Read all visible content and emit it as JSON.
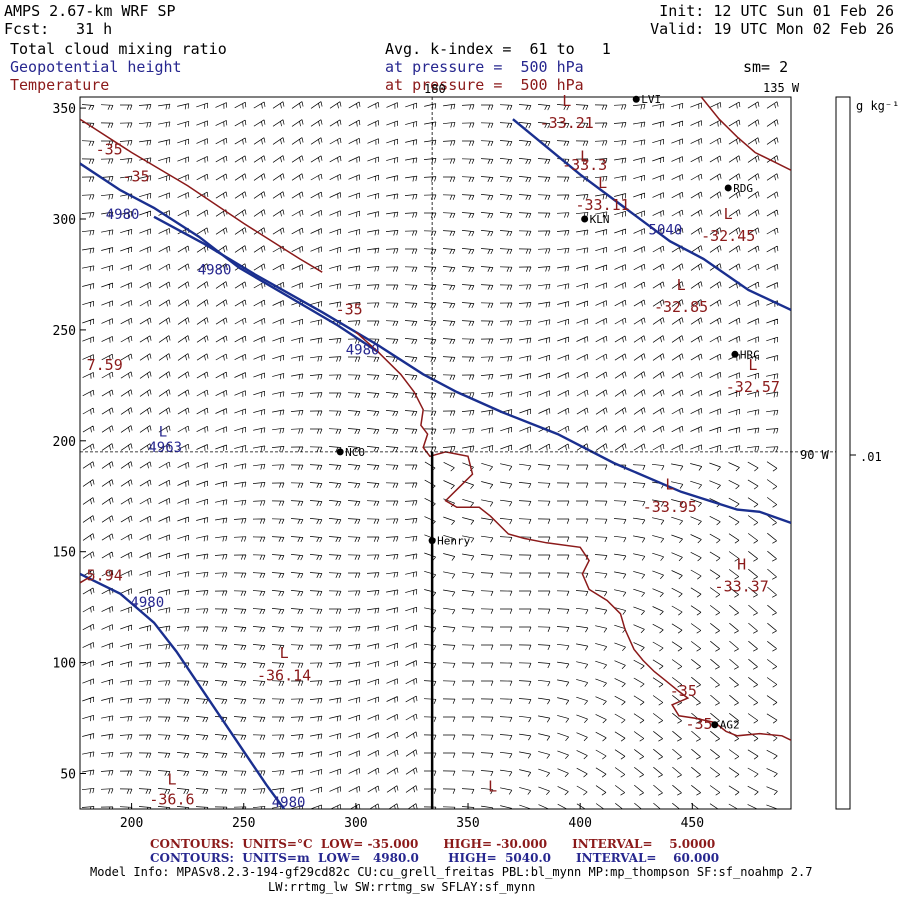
{
  "header": {
    "model": "AMPS 2.67-km WRF SP",
    "fcst_label": "Fcst:",
    "fcst_value": "31 h",
    "init": "Init: 12 UTC Sun 01 Feb 26",
    "valid": "Valid: 19 UTC Mon 02 Feb 26",
    "field1": "Total cloud mixing ratio",
    "field2": "Geopotential height",
    "field3": "Temperature",
    "avg": "Avg. k-index =  61 to   1",
    "pressure1": "at pressure =  500 hPa",
    "pressure2": "at pressure =  500 hPa",
    "sm": "sm= 2"
  },
  "axes": {
    "x_ticks": [
      200,
      250,
      300,
      350,
      400,
      450
    ],
    "y_ticks": [
      50,
      100,
      150,
      200,
      250,
      300,
      350
    ],
    "xlim": [
      177,
      494
    ],
    "ylim": [
      34,
      355
    ],
    "lon_labels": [
      "180",
      "135 W",
      "90 W"
    ]
  },
  "colorbar": {
    "unit": "g kg⁻¹",
    "tick": ".01"
  },
  "cross_section": {
    "x": 334,
    "y": 195
  },
  "stations": [
    {
      "name": "NCO",
      "x": 293,
      "y": 195
    },
    {
      "name": "Henry",
      "x": 334,
      "y": 155
    },
    {
      "name": "KLN",
      "x": 402,
      "y": 300
    },
    {
      "name": "RDG",
      "x": 466,
      "y": 314
    },
    {
      "name": "HRC",
      "x": 469,
      "y": 239
    },
    {
      "name": "AG2",
      "x": 460,
      "y": 72
    },
    {
      "name": "LVI",
      "x": 425,
      "y": 354
    }
  ],
  "height_labels": [
    {
      "text": "4980",
      "x": 196,
      "y": 300
    },
    {
      "text": "4980",
      "x": 237,
      "y": 275
    },
    {
      "text": "4980",
      "x": 303,
      "y": 239
    },
    {
      "text": "4980",
      "x": 207,
      "y": 125
    },
    {
      "text": "4980",
      "x": 270,
      "y": 35
    },
    {
      "text": "5040",
      "x": 438,
      "y": 293
    },
    {
      "text": "4963",
      "x": 215,
      "y": 195
    },
    {
      "text": "L",
      "x": 214,
      "y": 202
    }
  ],
  "temp_labels": [
    {
      "text": "-35",
      "x": 190,
      "y": 329
    },
    {
      "text": "-35",
      "x": 202,
      "y": 317
    },
    {
      "text": "-35",
      "x": 297,
      "y": 257
    },
    {
      "text": "7.59",
      "x": 188,
      "y": 232
    },
    {
      "text": "5.94",
      "x": 188,
      "y": 137
    },
    {
      "text": "-35",
      "x": 446,
      "y": 85
    },
    {
      "text": "-35",
      "x": 453,
      "y": 70
    },
    {
      "text": "L",
      "x": 394,
      "y": 351
    },
    {
      "text": "-33.21",
      "x": 394,
      "y": 341
    },
    {
      "text": "L",
      "x": 402,
      "y": 326
    },
    {
      "text": "-33.3",
      "x": 402,
      "y": 322
    },
    {
      "text": "L",
      "x": 410,
      "y": 314
    },
    {
      "text": "-33.11",
      "x": 410,
      "y": 304
    },
    {
      "text": "L",
      "x": 445,
      "y": 268
    },
    {
      "text": "-32.85",
      "x": 445,
      "y": 258
    },
    {
      "text": "L",
      "x": 466,
      "y": 300
    },
    {
      "text": "-32.45",
      "x": 466,
      "y": 290
    },
    {
      "text": "L",
      "x": 477,
      "y": 232
    },
    {
      "text": "-32.57",
      "x": 477,
      "y": 222
    },
    {
      "text": "L",
      "x": 440,
      "y": 178
    },
    {
      "text": "-33.95",
      "x": 440,
      "y": 168
    },
    {
      "text": "H",
      "x": 472,
      "y": 142
    },
    {
      "text": "-33.37",
      "x": 472,
      "y": 132
    },
    {
      "text": "L",
      "x": 268,
      "y": 102
    },
    {
      "text": "-36.14",
      "x": 268,
      "y": 92
    },
    {
      "text": "L",
      "x": 218,
      "y": 45
    },
    {
      "text": "-36.6",
      "x": 218,
      "y": 36
    },
    {
      "text": "L",
      "x": 361,
      "y": 42
    }
  ],
  "height_lines": [
    [
      [
        177,
        325
      ],
      [
        195,
        313
      ],
      [
        210,
        305
      ],
      [
        230,
        292
      ],
      [
        248,
        278
      ],
      [
        270,
        265
      ],
      [
        292,
        252
      ],
      [
        310,
        240
      ]
    ],
    [
      [
        210,
        301
      ],
      [
        232,
        289
      ],
      [
        255,
        275
      ],
      [
        285,
        258
      ],
      [
        310,
        243
      ],
      [
        330,
        230
      ],
      [
        345,
        222
      ],
      [
        365,
        213
      ],
      [
        390,
        203
      ],
      [
        415,
        190
      ],
      [
        445,
        177
      ],
      [
        470,
        169
      ],
      [
        480,
        168
      ],
      [
        494,
        163
      ]
    ],
    [
      [
        370,
        345
      ],
      [
        400,
        320
      ],
      [
        420,
        305
      ],
      [
        440,
        290
      ],
      [
        455,
        282
      ],
      [
        475,
        268
      ],
      [
        494,
        259
      ]
    ],
    [
      [
        177,
        140
      ],
      [
        195,
        131
      ],
      [
        210,
        118
      ],
      [
        220,
        105
      ],
      [
        230,
        90
      ],
      [
        240,
        75
      ],
      [
        250,
        60
      ],
      [
        260,
        45
      ],
      [
        268,
        34
      ]
    ]
  ],
  "temp_lines": [
    [
      [
        177,
        345
      ],
      [
        200,
        330
      ],
      [
        225,
        315
      ],
      [
        250,
        298
      ],
      [
        275,
        282
      ],
      [
        285,
        276
      ]
    ],
    [
      [
        300,
        249
      ],
      [
        310,
        240
      ],
      [
        320,
        230
      ],
      [
        326,
        222
      ],
      [
        330,
        214
      ],
      [
        329,
        207
      ],
      [
        332,
        203
      ],
      [
        330,
        197
      ],
      [
        333,
        193
      ],
      [
        340,
        195
      ],
      [
        350,
        193
      ],
      [
        352,
        185
      ],
      [
        347,
        180
      ],
      [
        340,
        173
      ],
      [
        345,
        170
      ],
      [
        355,
        170
      ],
      [
        360,
        166
      ],
      [
        368,
        158
      ],
      [
        375,
        156
      ],
      [
        385,
        154
      ],
      [
        400,
        152
      ],
      [
        404,
        146
      ],
      [
        401,
        140
      ],
      [
        404,
        133
      ],
      [
        412,
        128
      ],
      [
        418,
        122
      ],
      [
        420,
        115
      ],
      [
        424,
        106
      ],
      [
        428,
        101
      ],
      [
        433,
        96
      ],
      [
        438,
        92
      ],
      [
        444,
        87
      ],
      [
        448,
        84
      ],
      [
        441,
        81
      ],
      [
        444,
        76
      ],
      [
        451,
        75
      ],
      [
        460,
        73
      ],
      [
        465,
        69
      ],
      [
        470,
        67
      ],
      [
        480,
        68
      ],
      [
        490,
        67
      ],
      [
        494,
        65
      ]
    ],
    [
      [
        177,
        136
      ],
      [
        182,
        139
      ]
    ],
    [
      [
        454,
        355
      ],
      [
        462,
        345
      ],
      [
        470,
        337
      ],
      [
        478,
        330
      ],
      [
        486,
        326
      ],
      [
        494,
        322
      ]
    ]
  ],
  "footer": {
    "contours1": "CONTOURS:  UNITS=°C  LOW= -35.000      HIGH= -30.000      INTERVAL=    5.0000",
    "contours2": "CONTOURS:  UNITS=m  LOW=   4980.0       HIGH=  5040.0      INTERVAL=    60.000",
    "model_info1": "Model Info: MPASv8.2.3-194-gf29cd82c CU:cu_grell_freitas PBL:bl_mynn MP:mp_thompson SF:sf_noahmp 2.7",
    "model_info2": "LW:rrtmg_lw SW:rrtmg_sw SFLAY:sf_mynn"
  }
}
